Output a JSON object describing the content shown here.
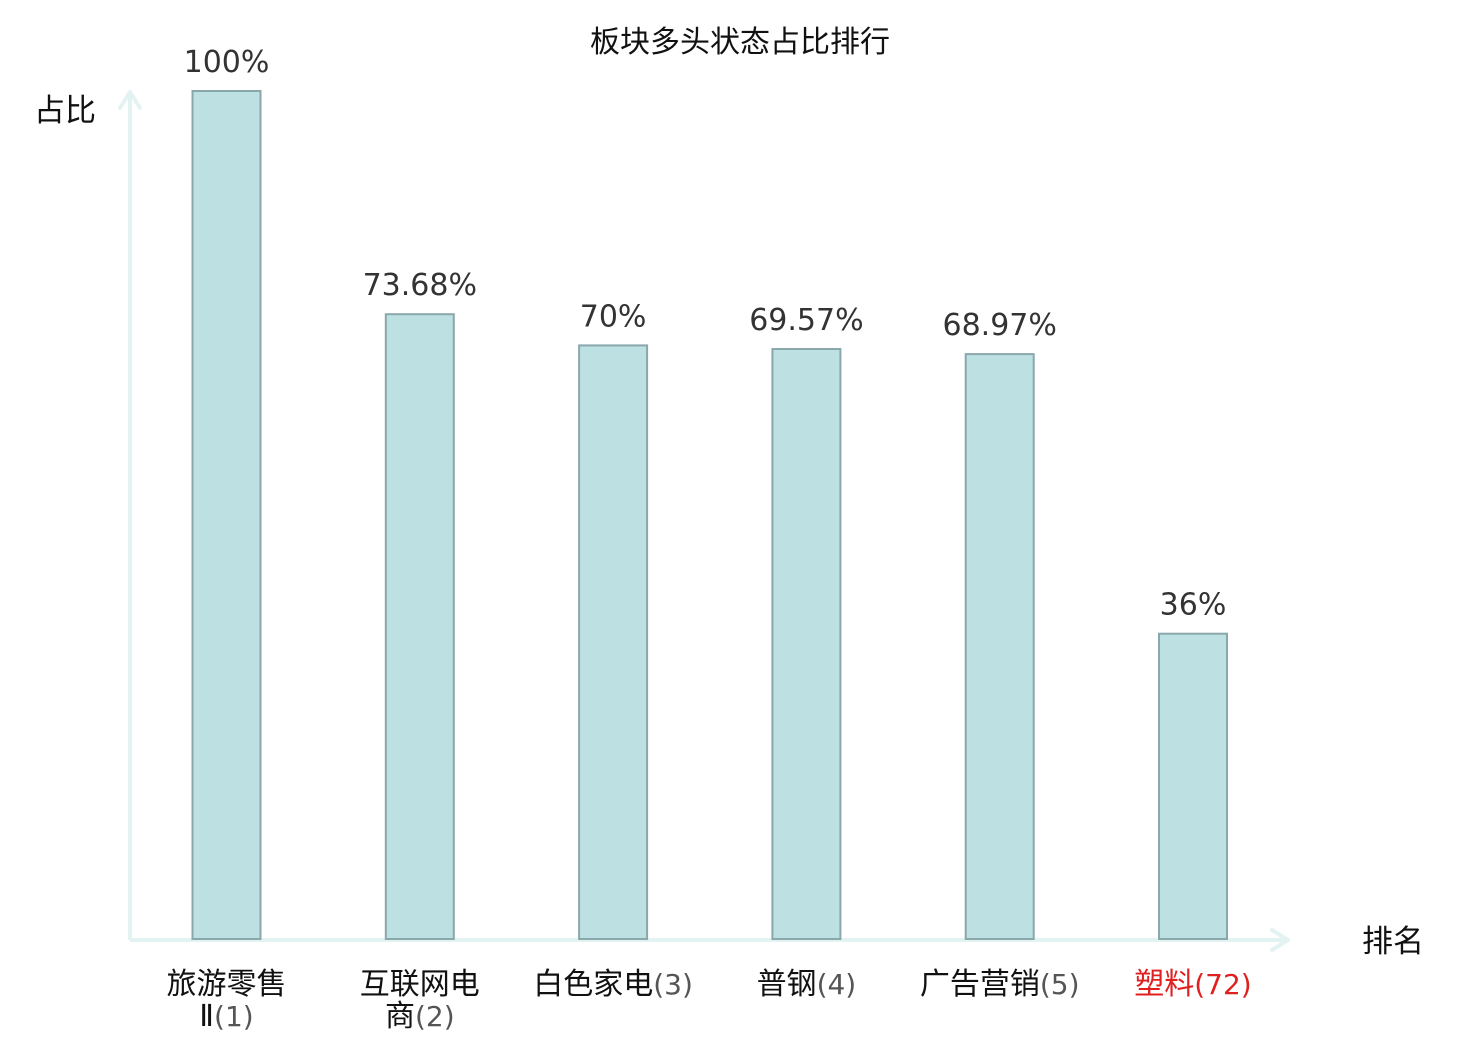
{
  "chart_data": {
    "type": "bar",
    "title": "板块多头状态占比排行",
    "ylabel": "占比",
    "xlabel": "排名",
    "ylim": [
      0,
      100
    ],
    "categories": [
      {
        "name": "旅游零售Ⅱ",
        "rank": "(1)",
        "highlight": false
      },
      {
        "name": "互联网电商",
        "rank": "(2)",
        "highlight": false
      },
      {
        "name": "白色家电",
        "rank": "(3)",
        "highlight": false
      },
      {
        "name": "普钢",
        "rank": "(4)",
        "highlight": false
      },
      {
        "name": "广告营销",
        "rank": "(5)",
        "highlight": false
      },
      {
        "name": "塑料",
        "rank": "(72)",
        "highlight": true
      }
    ],
    "values": [
      100,
      73.68,
      70,
      69.57,
      68.97,
      36
    ],
    "value_labels": [
      "100%",
      "73.68%",
      "70%",
      "69.57%",
      "68.97%",
      "36%"
    ],
    "colors": {
      "bar_fill": "#bde0e3",
      "bar_stroke": "#8aa7ab",
      "axis": "#e3f3f1",
      "label_text": "#111111",
      "rank_text": "#555555",
      "highlight_text": "#e02020"
    },
    "grid": false
  }
}
